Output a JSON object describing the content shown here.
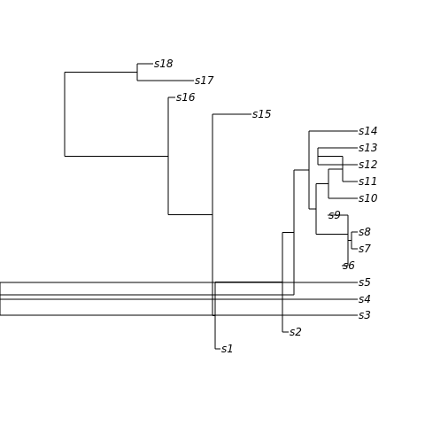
{
  "tree": {
    "line_color": "#000000",
    "label_color": "#000000",
    "tips": [
      "s1",
      "s2",
      "s3",
      "s4",
      "s5",
      "s6",
      "s7",
      "s8",
      "s9",
      "s10",
      "s11",
      "s12",
      "s13",
      "s14",
      "s15",
      "s16",
      "s17",
      "s18"
    ],
    "topology": "((s18,s17),(s16,(s15,(s1,(s2,((s14,((((s13,s12),s11),s10),(s9,(s6,(s8,s7))))),(s5,(s4,s3))))))))"
  }
}
